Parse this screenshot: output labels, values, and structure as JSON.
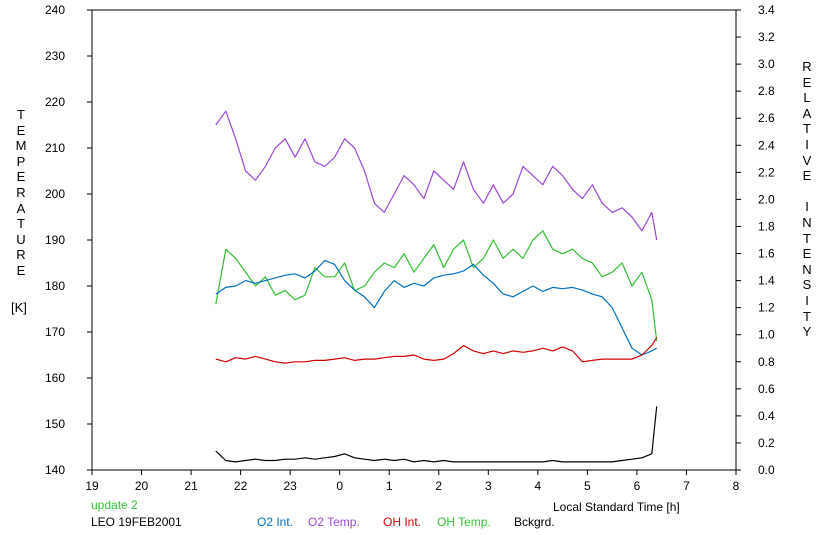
{
  "chart_data": {
    "type": "line",
    "xlabel": "Local Standard Time [h]",
    "ylabel_left": [
      "T",
      "E",
      "M",
      "P",
      "E",
      "R",
      "A",
      "T",
      "U",
      "R",
      "E"
    ],
    "ylabel_left_unit": "[K]",
    "ylabel_right": [
      "R",
      "E",
      "L",
      "A",
      "T",
      "I",
      "V",
      "E",
      "",
      "I",
      "N",
      "T",
      "E",
      "N",
      "S",
      "I",
      "T",
      "Y"
    ],
    "xlim": [
      19,
      32
    ],
    "x_tick_labels": [
      "19",
      "20",
      "21",
      "22",
      "23",
      "0",
      "1",
      "2",
      "3",
      "4",
      "5",
      "6",
      "7",
      "8"
    ],
    "y_left_lim": [
      140,
      240
    ],
    "y_left_ticks": [
      "140",
      "150",
      "160",
      "170",
      "180",
      "190",
      "200",
      "210",
      "220",
      "230",
      "240"
    ],
    "y_right_lim": [
      0.0,
      3.4
    ],
    "y_right_ticks": [
      "0.0",
      "0.2",
      "0.4",
      "0.6",
      "0.8",
      "1.0",
      "1.2",
      "1.4",
      "1.6",
      "1.8",
      "2.0",
      "2.2",
      "2.4",
      "2.6",
      "2.8",
      "3.0",
      "3.2",
      "3.4"
    ],
    "grid": false,
    "legend_placement": "bottom",
    "annotation": "update 2",
    "station_label": "LEO 19FEB2001",
    "series": [
      {
        "name": "O2 Int.",
        "axis": "right",
        "color": "#0070c0",
        "x": [
          21.5,
          21.7,
          21.9,
          22.1,
          22.3,
          22.5,
          22.7,
          22.9,
          23.1,
          23.3,
          23.5,
          23.7,
          23.9,
          24.1,
          24.3,
          24.5,
          24.7,
          24.9,
          25.1,
          25.3,
          25.5,
          25.7,
          25.9,
          26.1,
          26.3,
          26.5,
          26.7,
          26.9,
          27.1,
          27.3,
          27.5,
          27.7,
          27.9,
          28.1,
          28.3,
          28.5,
          28.7,
          28.9,
          29.1,
          29.3,
          29.5,
          29.7,
          29.9,
          30.1,
          30.3,
          30.4
        ],
        "y": [
          1.3,
          1.35,
          1.36,
          1.4,
          1.38,
          1.4,
          1.42,
          1.44,
          1.45,
          1.42,
          1.47,
          1.55,
          1.52,
          1.4,
          1.33,
          1.28,
          1.2,
          1.32,
          1.4,
          1.35,
          1.38,
          1.36,
          1.42,
          1.44,
          1.45,
          1.47,
          1.52,
          1.44,
          1.38,
          1.3,
          1.28,
          1.32,
          1.36,
          1.32,
          1.35,
          1.34,
          1.35,
          1.33,
          1.3,
          1.28,
          1.2,
          1.05,
          0.9,
          0.85,
          0.88,
          0.9
        ]
      },
      {
        "name": "O2 Temp.",
        "axis": "left",
        "color": "#9b48d6",
        "x": [
          21.5,
          21.7,
          21.9,
          22.1,
          22.3,
          22.5,
          22.7,
          22.9,
          23.1,
          23.3,
          23.5,
          23.7,
          23.9,
          24.1,
          24.3,
          24.5,
          24.7,
          24.9,
          25.1,
          25.3,
          25.5,
          25.7,
          25.9,
          26.1,
          26.3,
          26.5,
          26.7,
          26.9,
          27.1,
          27.3,
          27.5,
          27.7,
          27.9,
          28.1,
          28.3,
          28.5,
          28.7,
          28.9,
          29.1,
          29.3,
          29.5,
          29.7,
          29.9,
          30.1,
          30.3,
          30.4
        ],
        "y": [
          215,
          218,
          212,
          205,
          203,
          206,
          210,
          212,
          208,
          212,
          207,
          206,
          208,
          212,
          210,
          205,
          198,
          196,
          200,
          204,
          202,
          199,
          205,
          203,
          201,
          207,
          201,
          198,
          202,
          198,
          200,
          206,
          204,
          202,
          206,
          204,
          201,
          199,
          202,
          198,
          196,
          197,
          195,
          192,
          196,
          190
        ]
      },
      {
        "name": "OH Int.",
        "axis": "right",
        "color": "#d00000",
        "x": [
          21.5,
          21.7,
          21.9,
          22.1,
          22.3,
          22.5,
          22.7,
          22.9,
          23.1,
          23.3,
          23.5,
          23.7,
          23.9,
          24.1,
          24.3,
          24.5,
          24.7,
          24.9,
          25.1,
          25.3,
          25.5,
          25.7,
          25.9,
          26.1,
          26.3,
          26.5,
          26.7,
          26.9,
          27.1,
          27.3,
          27.5,
          27.7,
          27.9,
          28.1,
          28.3,
          28.5,
          28.7,
          28.9,
          29.1,
          29.3,
          29.5,
          29.7,
          29.9,
          30.1,
          30.3,
          30.4
        ],
        "y": [
          0.82,
          0.8,
          0.83,
          0.82,
          0.84,
          0.82,
          0.8,
          0.79,
          0.8,
          0.8,
          0.81,
          0.81,
          0.82,
          0.83,
          0.81,
          0.82,
          0.82,
          0.83,
          0.84,
          0.84,
          0.85,
          0.82,
          0.81,
          0.82,
          0.86,
          0.92,
          0.88,
          0.86,
          0.88,
          0.86,
          0.88,
          0.87,
          0.88,
          0.9,
          0.88,
          0.91,
          0.88,
          0.8,
          0.81,
          0.82,
          0.82,
          0.82,
          0.82,
          0.85,
          0.92,
          0.98
        ]
      },
      {
        "name": "OH Temp.",
        "axis": "left",
        "color": "#33c033",
        "x": [
          21.5,
          21.7,
          21.9,
          22.1,
          22.3,
          22.5,
          22.7,
          22.9,
          23.1,
          23.3,
          23.5,
          23.7,
          23.9,
          24.1,
          24.3,
          24.5,
          24.7,
          24.9,
          25.1,
          25.3,
          25.5,
          25.7,
          25.9,
          26.1,
          26.3,
          26.5,
          26.7,
          26.9,
          27.1,
          27.3,
          27.5,
          27.7,
          27.9,
          28.1,
          28.3,
          28.5,
          28.7,
          28.9,
          29.1,
          29.3,
          29.5,
          29.7,
          29.9,
          30.1,
          30.3,
          30.4
        ],
        "y": [
          176,
          188,
          186,
          183,
          180,
          182,
          178,
          179,
          177,
          178,
          184,
          182,
          182,
          185,
          179,
          180,
          183,
          185,
          184,
          187,
          183,
          186,
          189,
          184,
          188,
          190,
          184,
          186,
          190,
          186,
          188,
          186,
          190,
          192,
          188,
          187,
          188,
          186,
          185,
          182,
          183,
          185,
          180,
          183,
          177,
          168
        ]
      },
      {
        "name": "Bckgrd.",
        "axis": "right",
        "color": "#000000",
        "x": [
          21.5,
          21.7,
          21.9,
          22.1,
          22.3,
          22.5,
          22.7,
          22.9,
          23.1,
          23.3,
          23.5,
          23.7,
          23.9,
          24.1,
          24.3,
          24.5,
          24.7,
          24.9,
          25.1,
          25.3,
          25.5,
          25.7,
          25.9,
          26.1,
          26.3,
          26.5,
          26.7,
          26.9,
          27.1,
          27.3,
          27.5,
          27.7,
          27.9,
          28.1,
          28.3,
          28.5,
          28.7,
          28.9,
          29.1,
          29.3,
          29.5,
          29.7,
          29.9,
          30.1,
          30.3,
          30.4
        ],
        "y": [
          0.14,
          0.07,
          0.06,
          0.07,
          0.08,
          0.07,
          0.07,
          0.08,
          0.08,
          0.09,
          0.08,
          0.09,
          0.1,
          0.12,
          0.09,
          0.08,
          0.07,
          0.08,
          0.07,
          0.08,
          0.06,
          0.07,
          0.06,
          0.07,
          0.06,
          0.06,
          0.06,
          0.06,
          0.06,
          0.06,
          0.06,
          0.06,
          0.06,
          0.06,
          0.07,
          0.06,
          0.06,
          0.06,
          0.06,
          0.06,
          0.06,
          0.07,
          0.08,
          0.09,
          0.12,
          0.47
        ]
      }
    ]
  }
}
